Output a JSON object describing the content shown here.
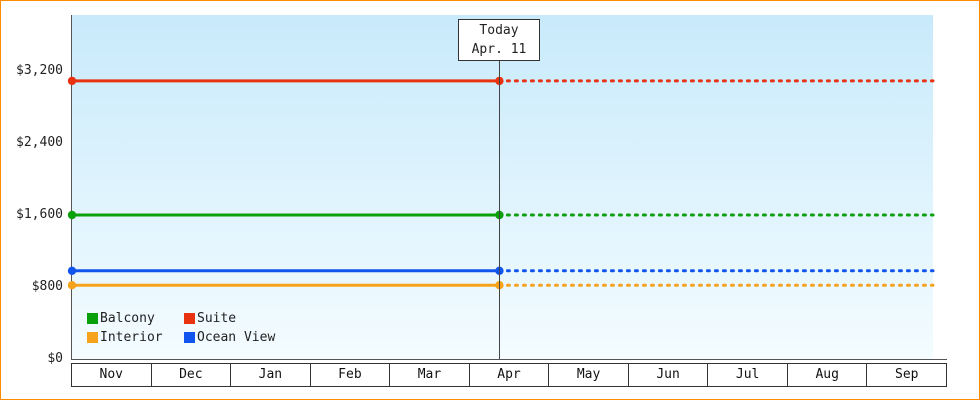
{
  "chart_data": {
    "type": "line",
    "title": "",
    "x_months": [
      "Nov",
      "Dec",
      "Jan",
      "Feb",
      "Mar",
      "Apr",
      "May",
      "Jun",
      "Jul",
      "Aug",
      "Sep"
    ],
    "ylim": [
      0,
      3200
    ],
    "y_ticks": [
      {
        "value": 3200,
        "label": "$3,200"
      },
      {
        "value": 2400,
        "label": "$2,400"
      },
      {
        "value": 1600,
        "label": "$1,600"
      },
      {
        "value": 800,
        "label": "$800"
      },
      {
        "value": 0,
        "label": "$0"
      }
    ],
    "grid": false,
    "legend_position": "bottom-left",
    "today": {
      "label": "Today",
      "date": "Apr. 11",
      "month_index": 5,
      "day_fraction": 0.367
    },
    "series": [
      {
        "name": "Suite",
        "color": "#e83210",
        "value": 3090,
        "style": "solid-then-dotted"
      },
      {
        "name": "Balcony",
        "color": "#0aa00a",
        "value": 1600,
        "style": "solid-then-dotted"
      },
      {
        "name": "Ocean View",
        "color": "#1155ee",
        "value": 980,
        "style": "solid-then-dotted"
      },
      {
        "name": "Interior",
        "color": "#f7a21b",
        "value": 820,
        "style": "solid-then-dotted"
      }
    ],
    "legend_items": [
      "Balcony",
      "Suite",
      "Interior",
      "Ocean View"
    ]
  },
  "colors": {
    "frame_border": "#ff8a00",
    "plot_top": "#c8eafb",
    "plot_bottom": "#f4fcff",
    "axis": "#555555",
    "text": "#222222"
  }
}
